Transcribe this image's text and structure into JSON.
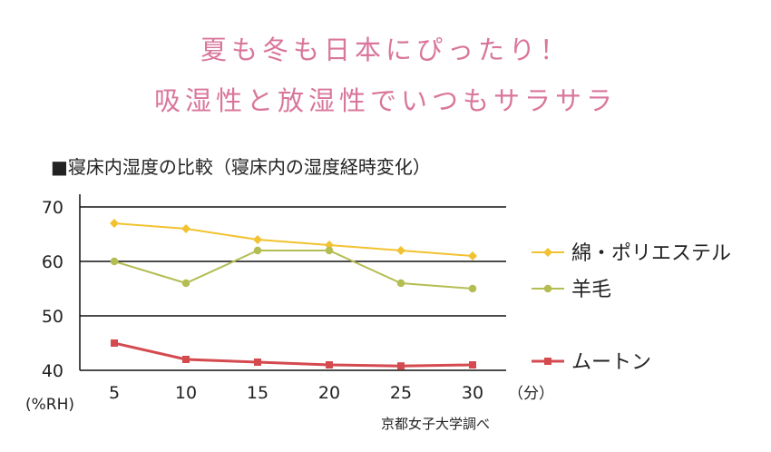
{
  "headline": {
    "line1": "夏も冬も日本にぴったり！",
    "line2": "吸湿性と放湿性でいつもサラサラ",
    "color": "#d9769b"
  },
  "chart_title": "■寝床内湿度の比較（寝床内の湿度経時変化）",
  "credit": "京都女子大学調べ",
  "chart_data": {
    "type": "line",
    "x": [
      5,
      10,
      15,
      20,
      25,
      30
    ],
    "x_unit": "（分）",
    "y_unit": "(%RH)",
    "ylim": [
      40,
      70
    ],
    "yticks": [
      40,
      50,
      60,
      70
    ],
    "grid": "horizontal",
    "legend_position": "right",
    "series": [
      {
        "name": "綿・ポリエステル",
        "values": [
          67,
          66,
          64,
          63,
          62,
          61
        ],
        "color": "#f2c230",
        "marker": "diamond"
      },
      {
        "name": "羊毛",
        "values": [
          60,
          56,
          62,
          62,
          56,
          55
        ],
        "color": "#b4bd52",
        "marker": "circle"
      },
      {
        "name": "ムートン",
        "values": [
          45,
          42,
          41.5,
          41,
          40.8,
          41
        ],
        "color": "#d44a4f",
        "marker": "square"
      }
    ]
  }
}
